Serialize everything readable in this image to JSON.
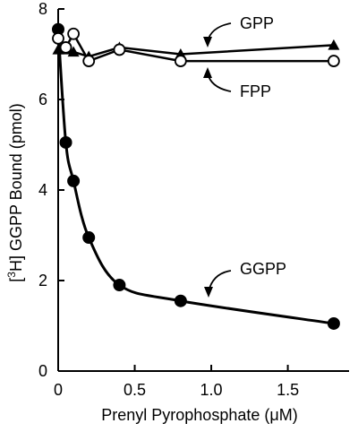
{
  "chart_data": {
    "type": "line",
    "xlabel_prefix": "Prenyl Pyrophosphate (",
    "xlabel_unit": "μM",
    "xlabel_suffix": ")",
    "ylabel_pre": "[",
    "ylabel_sup": "3",
    "ylabel_post": "H] GGPP Bound (pmol)",
    "xlim": [
      0,
      1.9
    ],
    "ylim": [
      0,
      8
    ],
    "xticks": [
      0,
      0.5,
      1.0,
      1.5
    ],
    "xtick_labels": [
      "0",
      "0.5",
      "1.0",
      "1.5"
    ],
    "yticks": [
      0,
      2,
      4,
      6,
      8
    ],
    "ytick_labels": [
      "0",
      "2",
      "4",
      "6",
      "8"
    ],
    "grid": false,
    "series": [
      {
        "name": "GGPP",
        "marker": "filled-circle",
        "x": [
          0,
          0.05,
          0.1,
          0.2,
          0.4,
          0.8,
          1.8
        ],
        "y": [
          7.55,
          5.05,
          4.2,
          2.95,
          1.9,
          1.55,
          1.05
        ]
      },
      {
        "name": "GPP",
        "marker": "filled-triangle",
        "x": [
          0,
          0.05,
          0.1,
          0.2,
          0.4,
          0.8,
          1.8
        ],
        "y": [
          7.1,
          7.1,
          7.05,
          6.95,
          7.15,
          7.0,
          7.2
        ]
      },
      {
        "name": "FPP",
        "marker": "open-circle",
        "x": [
          0,
          0.05,
          0.1,
          0.2,
          0.4,
          0.8,
          1.8
        ],
        "y": [
          7.35,
          7.15,
          7.45,
          6.85,
          7.1,
          6.85,
          6.85
        ]
      }
    ],
    "annotations": [
      "GPP",
      "FPP",
      "GGPP"
    ]
  }
}
